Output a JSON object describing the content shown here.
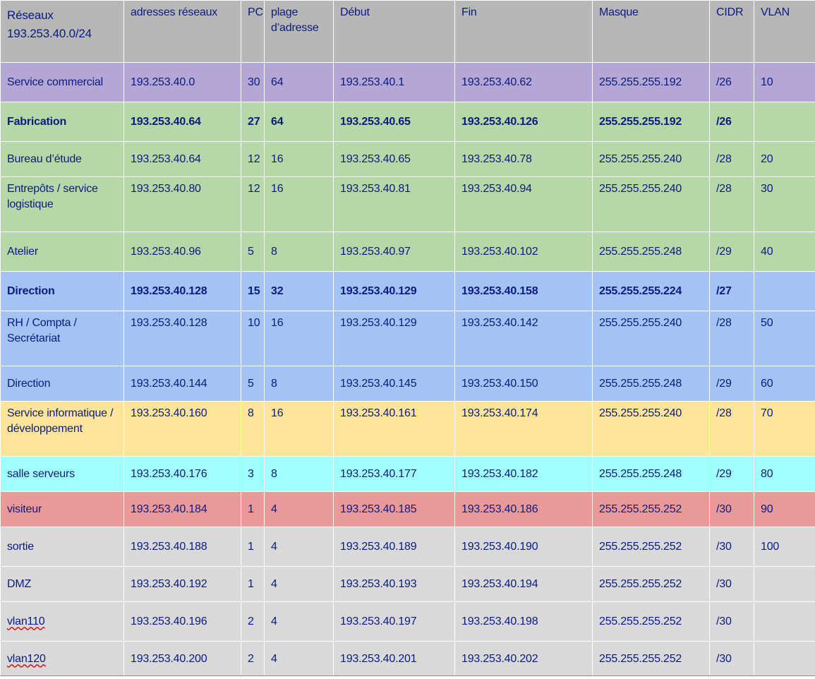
{
  "colors": {
    "header": "#b7b7b7",
    "commercial": "#b4a7d6",
    "fabrication": "#b6d7a8",
    "direction": "#a4c2f4",
    "informatique": "#ffe599",
    "serveurs": "#a2ffff",
    "visiteur": "#ea9999",
    "autres": "#d9d9d9",
    "text": "#0b1a80"
  },
  "table": {
    "headers": [
      "Réseaux\n193.253.40.0/24",
      "adresses réseaux",
      "PC",
      "plage\nd’adresse",
      "Début",
      "Fin",
      "Masque",
      "CIDR",
      "VLAN"
    ],
    "rows": [
      {
        "cells": [
          "Service commercial",
          "193.253.40.0",
          "30",
          "64",
          "193.253.40.1",
          "193.253.40.62",
          "255.255.255.192",
          "/26",
          "10"
        ],
        "color": "commercial",
        "bold": false,
        "height": 56
      },
      {
        "cells": [
          "Fabrication",
          "193.253.40.64",
          "27",
          "64",
          "193.253.40.65",
          "193.253.40.126",
          "255.255.255.192",
          "/26",
          ""
        ],
        "color": "fabrication",
        "bold": true,
        "height": 56
      },
      {
        "cells": [
          "Bureau d’étude",
          "193.253.40.64",
          "12",
          "16",
          "193.253.40.65",
          "193.253.40.78",
          "255.255.255.240",
          "/28",
          "20"
        ],
        "color": "fabrication",
        "bold": false,
        "height": 50
      },
      {
        "cells": [
          "Entrepôts / service logistique",
          "193.253.40.80",
          "12",
          "16",
          "193.253.40.81",
          "193.253.40.94",
          "255.255.255.240",
          "/28",
          "30"
        ],
        "color": "fabrication",
        "bold": false,
        "height": 78
      },
      {
        "cells": [
          "Atelier",
          "193.253.40.96",
          "5",
          "8",
          "193.253.40.97",
          "193.253.40.102",
          "255.255.255.248",
          "/29",
          "40"
        ],
        "color": "fabrication",
        "bold": false,
        "height": 56
      },
      {
        "cells": [
          "Direction",
          "193.253.40.128",
          "15",
          "32",
          "193.253.40.129",
          "193.253.40.158",
          "255.255.255.224",
          "/27",
          ""
        ],
        "color": "direction",
        "bold": true,
        "height": 56
      },
      {
        "cells": [
          " RH / Compta / Secrétariat",
          "193.253.40.128",
          "10",
          "16",
          "193.253.40.129",
          "193.253.40.142",
          "255.255.255.240",
          "/28",
          "50"
        ],
        "color": "direction",
        "bold": false,
        "height": 78
      },
      {
        "cells": [
          "Direction",
          "193.253.40.144",
          "5",
          "8",
          "193.253.40.145",
          "193.253.40.150",
          "255.255.255.248",
          "/29",
          "60"
        ],
        "color": "direction",
        "bold": false,
        "height": 50
      },
      {
        "cells": [
          "Service informatique / développement",
          "193.253.40.160",
          "8",
          "16",
          "193.253.40.161",
          "193.253.40.174",
          "255.255.255.240",
          "/28",
          "70"
        ],
        "color": "informatique",
        "bold": false,
        "height": 78
      },
      {
        "cells": [
          "salle serveurs",
          "193.253.40.176",
          "3",
          "8",
          "193.253.40.177",
          "193.253.40.182",
          "255.255.255.248",
          "/29",
          "80"
        ],
        "color": "serveurs",
        "bold": false,
        "height": 50
      },
      {
        "cells": [
          "visiteur",
          "193.253.40.184",
          "1",
          "4",
          "193.253.40.185",
          "193.253.40.186",
          "255.255.255.252",
          "/30",
          "90"
        ],
        "color": "visiteur",
        "bold": false,
        "height": 50
      },
      {
        "cells": [
          "sortie",
          "193.253.40.188",
          "1",
          "4",
          "193.253.40.189",
          "193.253.40.190",
          "255.255.255.252",
          "/30",
          "100"
        ],
        "color": "autres",
        "bold": false,
        "height": 56
      },
      {
        "cells": [
          "DMZ",
          "193.253.40.192",
          "1",
          "4",
          "193.253.40.193",
          "193.253.40.194",
          "255.255.255.252",
          "/30",
          ""
        ],
        "color": "autres",
        "bold": false,
        "height": 50
      },
      {
        "cells": [
          "vlan110",
          "193.253.40.196",
          "2",
          "4",
          "193.253.40.197",
          "193.253.40.198",
          "255.255.255.252",
          "/30",
          ""
        ],
        "color": "autres",
        "bold": false,
        "height": 56,
        "misspelled": true
      },
      {
        "cells": [
          "vlan120",
          "193.253.40.200",
          "2",
          "4",
          "193.253.40.201",
          "193.253.40.202",
          "255.255.255.252",
          "/30",
          ""
        ],
        "color": "autres",
        "bold": false,
        "height": 50,
        "misspelled": true
      }
    ]
  }
}
